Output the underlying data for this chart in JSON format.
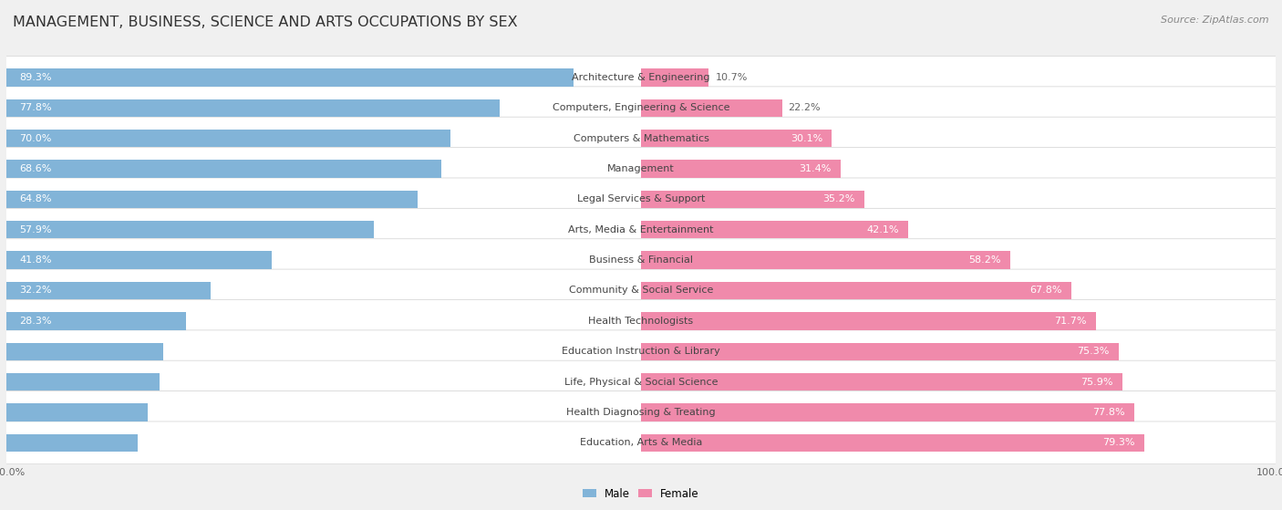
{
  "title": "MANAGEMENT, BUSINESS, SCIENCE AND ARTS OCCUPATIONS BY SEX",
  "source": "Source: ZipAtlas.com",
  "categories": [
    "Architecture & Engineering",
    "Computers, Engineering & Science",
    "Computers & Mathematics",
    "Management",
    "Legal Services & Support",
    "Arts, Media & Entertainment",
    "Business & Financial",
    "Community & Social Service",
    "Health Technologists",
    "Education Instruction & Library",
    "Life, Physical & Social Science",
    "Health Diagnosing & Treating",
    "Education, Arts & Media"
  ],
  "male_pct": [
    89.3,
    77.8,
    70.0,
    68.6,
    64.8,
    57.9,
    41.8,
    32.2,
    28.3,
    24.7,
    24.1,
    22.2,
    20.7
  ],
  "female_pct": [
    10.7,
    22.2,
    30.1,
    31.4,
    35.2,
    42.1,
    58.2,
    67.8,
    71.7,
    75.3,
    75.9,
    77.8,
    79.3
  ],
  "male_color": "#82b4d8",
  "female_color": "#f08aab",
  "bg_color": "#f0f0f0",
  "row_bg_color": "#ffffff",
  "row_edge_color": "#d8d8d8",
  "title_color": "#333333",
  "label_color_inside": "#ffffff",
  "label_color_outside": "#666666",
  "category_color": "#444444",
  "axis_color": "#666666",
  "source_color": "#888888",
  "title_fontsize": 11.5,
  "bar_label_fontsize": 8,
  "category_fontsize": 8,
  "axis_fontsize": 8,
  "source_fontsize": 8
}
